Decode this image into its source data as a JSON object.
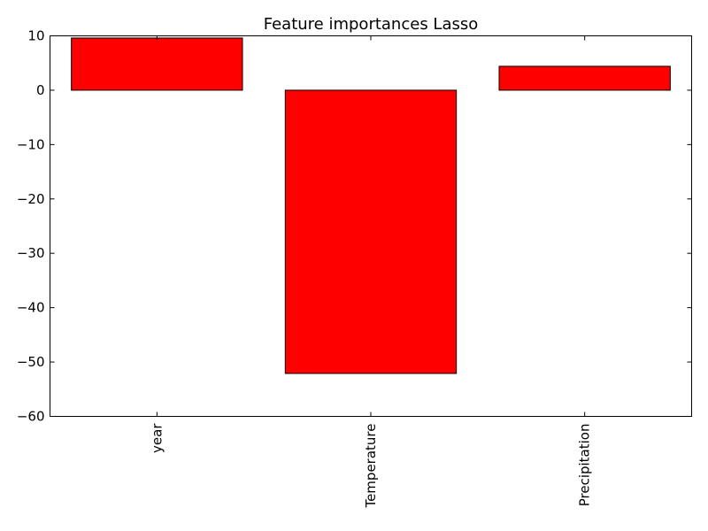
{
  "chart_data": {
    "type": "bar",
    "title": "Feature importances Lasso",
    "xlabel": "",
    "ylabel": "",
    "categories": [
      "year",
      "Temperature",
      "Precipitation"
    ],
    "values": [
      9.6,
      -52.1,
      4.4
    ],
    "ylim": [
      -60,
      10
    ],
    "yticks": [
      10,
      0,
      -10,
      -20,
      -30,
      -40,
      -50,
      -60
    ],
    "ytick_labels": [
      "10",
      "0",
      "−10",
      "−20",
      "−30",
      "−40",
      "−50",
      "−60"
    ],
    "grid": false,
    "legend": "none",
    "xtick_rotation": "vertical",
    "bar_color": "#ff0000",
    "edge_color": "#000000"
  }
}
